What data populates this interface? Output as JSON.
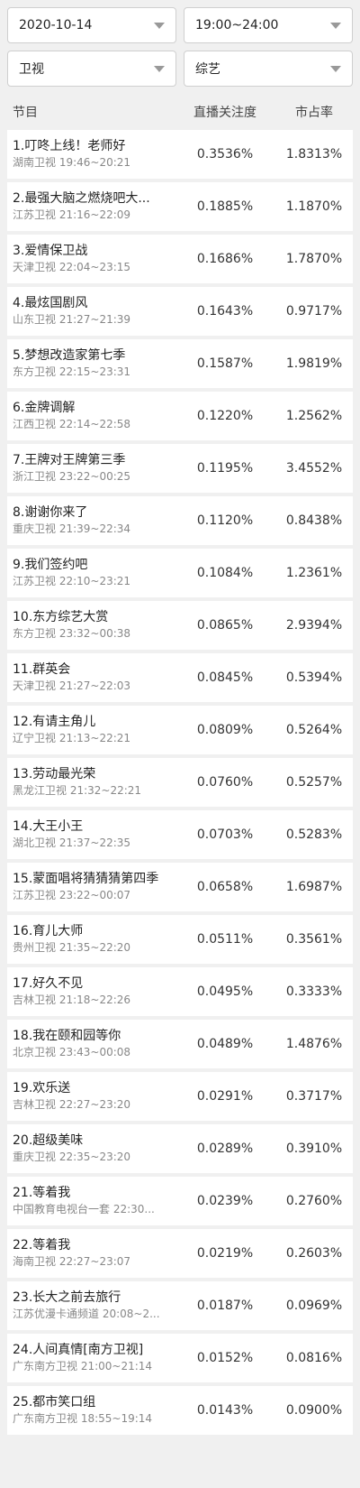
{
  "filters": {
    "date": "2020-10-14",
    "time_range": "19:00~24:00",
    "channel_type": "卫视",
    "genre": "综艺"
  },
  "table": {
    "headers": {
      "program": "节目",
      "live_attention": "直播关注度",
      "market_share": "市占率"
    },
    "rows": [
      {
        "title": "1.叮咚上线！老师好",
        "sub": "湖南卫视 19:46~20:21",
        "attention": "0.3536%",
        "share": "1.8313%"
      },
      {
        "title": "2.最强大脑之燃烧吧大...",
        "sub": "江苏卫视 21:16~22:09",
        "attention": "0.1885%",
        "share": "1.1870%"
      },
      {
        "title": "3.爱情保卫战",
        "sub": "天津卫视 22:04~23:15",
        "attention": "0.1686%",
        "share": "1.7870%"
      },
      {
        "title": "4.最炫国剧风",
        "sub": "山东卫视 21:27~21:39",
        "attention": "0.1643%",
        "share": "0.9717%"
      },
      {
        "title": "5.梦想改造家第七季",
        "sub": "东方卫视 22:15~23:31",
        "attention": "0.1587%",
        "share": "1.9819%"
      },
      {
        "title": "6.金牌调解",
        "sub": "江西卫视 22:14~22:58",
        "attention": "0.1220%",
        "share": "1.2562%"
      },
      {
        "title": "7.王牌对王牌第三季",
        "sub": "浙江卫视 23:22~00:25",
        "attention": "0.1195%",
        "share": "3.4552%"
      },
      {
        "title": "8.谢谢你来了",
        "sub": "重庆卫视 21:39~22:34",
        "attention": "0.1120%",
        "share": "0.8438%"
      },
      {
        "title": "9.我们签约吧",
        "sub": "江苏卫视 22:10~23:21",
        "attention": "0.1084%",
        "share": "1.2361%"
      },
      {
        "title": "10.东方综艺大赏",
        "sub": "东方卫视 23:32~00:38",
        "attention": "0.0865%",
        "share": "2.9394%"
      },
      {
        "title": "11.群英会",
        "sub": "天津卫视 21:27~22:03",
        "attention": "0.0845%",
        "share": "0.5394%"
      },
      {
        "title": "12.有请主角儿",
        "sub": "辽宁卫视 21:13~22:21",
        "attention": "0.0809%",
        "share": "0.5264%"
      },
      {
        "title": "13.劳动最光荣",
        "sub": "黑龙江卫视 21:32~22:21",
        "attention": "0.0760%",
        "share": "0.5257%"
      },
      {
        "title": "14.大王小王",
        "sub": "湖北卫视 21:37~22:35",
        "attention": "0.0703%",
        "share": "0.5283%"
      },
      {
        "title": "15.蒙面唱将猜猜猜第四季",
        "sub": "江苏卫视 23:22~00:07",
        "attention": "0.0658%",
        "share": "1.6987%"
      },
      {
        "title": "16.育儿大师",
        "sub": "贵州卫视 21:35~22:20",
        "attention": "0.0511%",
        "share": "0.3561%"
      },
      {
        "title": "17.好久不见",
        "sub": "吉林卫视 21:18~22:26",
        "attention": "0.0495%",
        "share": "0.3333%"
      },
      {
        "title": "18.我在颐和园等你",
        "sub": "北京卫视 23:43~00:08",
        "attention": "0.0489%",
        "share": "1.4876%"
      },
      {
        "title": "19.欢乐送",
        "sub": "吉林卫视 22:27~23:20",
        "attention": "0.0291%",
        "share": "0.3717%"
      },
      {
        "title": "20.超级美味",
        "sub": "重庆卫视 22:35~23:20",
        "attention": "0.0289%",
        "share": "0.3910%"
      },
      {
        "title": "21.等着我",
        "sub": "中国教育电视台一套 22:30...",
        "attention": "0.0239%",
        "share": "0.2760%"
      },
      {
        "title": "22.等着我",
        "sub": "海南卫视 22:27~23:07",
        "attention": "0.0219%",
        "share": "0.2603%"
      },
      {
        "title": "23.长大之前去旅行",
        "sub": "江苏优漫卡通频道 20:08~2...",
        "attention": "0.0187%",
        "share": "0.0969%"
      },
      {
        "title": "24.人间真情[南方卫视]",
        "sub": "广东南方卫视 21:00~21:14",
        "attention": "0.0152%",
        "share": "0.0816%"
      },
      {
        "title": "25.都市笑口组",
        "sub": "广东南方卫视 18:55~19:14",
        "attention": "0.0143%",
        "share": "0.0900%"
      }
    ]
  }
}
